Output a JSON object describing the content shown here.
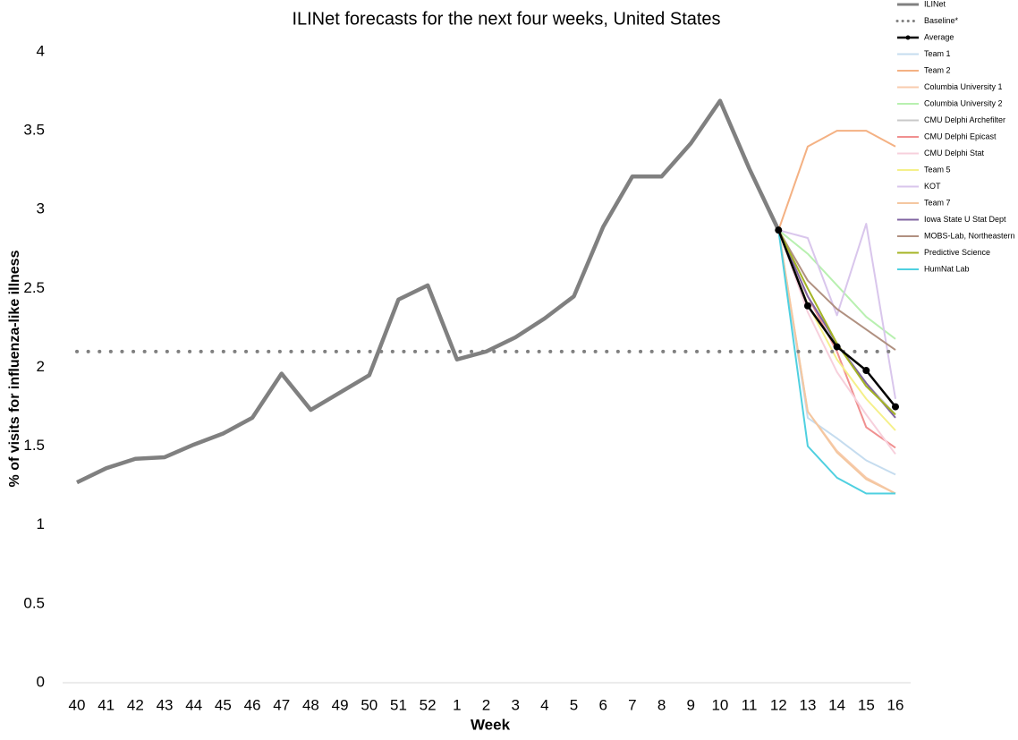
{
  "chart_data": {
    "type": "line",
    "title": "ILINet forecasts for the next four weeks, United States",
    "x_label": "Week",
    "y_label": "% of visits for influenza-like illness",
    "categories": [
      "40",
      "41",
      "42",
      "43",
      "44",
      "45",
      "46",
      "47",
      "48",
      "49",
      "50",
      "51",
      "52",
      "1",
      "2",
      "3",
      "4",
      "5",
      "6",
      "7",
      "8",
      "9",
      "10",
      "11",
      "12",
      "13",
      "14",
      "15",
      "16"
    ],
    "ylim": [
      0,
      4
    ],
    "yticks": [
      0,
      0.5,
      1,
      1.5,
      2,
      2.5,
      3,
      3.5,
      4
    ],
    "legend": "right",
    "series": [
      {
        "name": "ILINet",
        "color": "#808080",
        "width": 4.5,
        "values": [
          1.27,
          1.36,
          1.42,
          1.43,
          1.51,
          1.58,
          1.68,
          1.96,
          1.73,
          1.84,
          1.95,
          2.43,
          2.52,
          2.05,
          2.1,
          2.19,
          2.31,
          2.45,
          2.89,
          3.21,
          3.21,
          3.42,
          3.69,
          3.26,
          2.87,
          null,
          null,
          null,
          null
        ]
      },
      {
        "name": "Baseline*",
        "color": "#808080",
        "width": 4,
        "dash": "dotted",
        "values": [
          2.1,
          2.1,
          2.1,
          2.1,
          2.1,
          2.1,
          2.1,
          2.1,
          2.1,
          2.1,
          2.1,
          2.1,
          2.1,
          2.1,
          2.1,
          2.1,
          2.1,
          2.1,
          2.1,
          2.1,
          2.1,
          2.1,
          2.1,
          2.1,
          2.1,
          2.1,
          2.1,
          2.1,
          2.1
        ]
      },
      {
        "name": "Average",
        "color": "#000000",
        "width": 2.5,
        "markers": true,
        "values": [
          null,
          null,
          null,
          null,
          null,
          null,
          null,
          null,
          null,
          null,
          null,
          null,
          null,
          null,
          null,
          null,
          null,
          null,
          null,
          null,
          null,
          null,
          null,
          null,
          2.87,
          2.39,
          2.13,
          1.98,
          1.75
        ]
      },
      {
        "name": "Team 1",
        "color": "#c5dcef",
        "width": 2,
        "values": [
          null,
          null,
          null,
          null,
          null,
          null,
          null,
          null,
          null,
          null,
          null,
          null,
          null,
          null,
          null,
          null,
          null,
          null,
          null,
          null,
          null,
          null,
          null,
          null,
          2.87,
          1.68,
          1.55,
          1.41,
          1.32
        ]
      },
      {
        "name": "Team 2",
        "color": "#f4b183",
        "width": 2,
        "values": [
          null,
          null,
          null,
          null,
          null,
          null,
          null,
          null,
          null,
          null,
          null,
          null,
          null,
          null,
          null,
          null,
          null,
          null,
          null,
          null,
          null,
          null,
          null,
          null,
          2.87,
          3.4,
          3.5,
          3.5,
          3.4
        ]
      },
      {
        "name": "Columbia University 1",
        "color": "#f8cbad",
        "width": 2,
        "values": [
          null,
          null,
          null,
          null,
          null,
          null,
          null,
          null,
          null,
          null,
          null,
          null,
          null,
          null,
          null,
          null,
          null,
          null,
          null,
          null,
          null,
          null,
          null,
          null,
          2.87,
          1.72,
          1.47,
          1.3,
          1.2
        ]
      },
      {
        "name": "Columbia University 2",
        "color": "#b8f0b0",
        "width": 2,
        "values": [
          null,
          null,
          null,
          null,
          null,
          null,
          null,
          null,
          null,
          null,
          null,
          null,
          null,
          null,
          null,
          null,
          null,
          null,
          null,
          null,
          null,
          null,
          null,
          null,
          2.87,
          2.72,
          2.52,
          2.32,
          2.18
        ]
      },
      {
        "name": "CMU Delphi Archefilter",
        "color": "#c9c9c9",
        "width": 2,
        "values": [
          null,
          null,
          null,
          null,
          null,
          null,
          null,
          null,
          null,
          null,
          null,
          null,
          null,
          null,
          null,
          null,
          null,
          null,
          null,
          null,
          null,
          null,
          null,
          null,
          2.87,
          2.45,
          2.15,
          1.9,
          1.7
        ]
      },
      {
        "name": "CMU Delphi Epicast",
        "color": "#f09090",
        "width": 2,
        "values": [
          null,
          null,
          null,
          null,
          null,
          null,
          null,
          null,
          null,
          null,
          null,
          null,
          null,
          null,
          null,
          null,
          null,
          null,
          null,
          null,
          null,
          null,
          null,
          null,
          2.87,
          2.45,
          2.1,
          1.62,
          1.49
        ]
      },
      {
        "name": "CMU Delphi Stat",
        "color": "#f7d0dc",
        "width": 2,
        "values": [
          null,
          null,
          null,
          null,
          null,
          null,
          null,
          null,
          null,
          null,
          null,
          null,
          null,
          null,
          null,
          null,
          null,
          null,
          null,
          null,
          null,
          null,
          null,
          null,
          2.87,
          2.35,
          1.97,
          1.7,
          1.45
        ]
      },
      {
        "name": "Team 5",
        "color": "#f5f08a",
        "width": 2,
        "values": [
          null,
          null,
          null,
          null,
          null,
          null,
          null,
          null,
          null,
          null,
          null,
          null,
          null,
          null,
          null,
          null,
          null,
          null,
          null,
          null,
          null,
          null,
          null,
          null,
          2.87,
          2.4,
          2.05,
          1.8,
          1.6
        ]
      },
      {
        "name": "KOT",
        "color": "#d9c6ec",
        "width": 2,
        "values": [
          null,
          null,
          null,
          null,
          null,
          null,
          null,
          null,
          null,
          null,
          null,
          null,
          null,
          null,
          null,
          null,
          null,
          null,
          null,
          null,
          null,
          null,
          null,
          null,
          2.87,
          2.82,
          2.33,
          2.91,
          1.8
        ]
      },
      {
        "name": "Team 7",
        "color": "#f4c7a0",
        "width": 2,
        "values": [
          null,
          null,
          null,
          null,
          null,
          null,
          null,
          null,
          null,
          null,
          null,
          null,
          null,
          null,
          null,
          null,
          null,
          null,
          null,
          null,
          null,
          null,
          null,
          null,
          2.87,
          1.72,
          1.46,
          1.29,
          1.2
        ]
      },
      {
        "name": "Iowa State U Stat Dept",
        "color": "#8064a2",
        "width": 2,
        "values": [
          null,
          null,
          null,
          null,
          null,
          null,
          null,
          null,
          null,
          null,
          null,
          null,
          null,
          null,
          null,
          null,
          null,
          null,
          null,
          null,
          null,
          null,
          null,
          null,
          2.87,
          2.45,
          2.15,
          1.9,
          1.68
        ]
      },
      {
        "name": "MOBS-Lab, Northeastern",
        "color": "#b09080",
        "width": 2,
        "values": [
          null,
          null,
          null,
          null,
          null,
          null,
          null,
          null,
          null,
          null,
          null,
          null,
          null,
          null,
          null,
          null,
          null,
          null,
          null,
          null,
          null,
          null,
          null,
          null,
          2.87,
          2.55,
          2.37,
          2.24,
          2.11
        ]
      },
      {
        "name": "Predictive Science",
        "color": "#a4b424",
        "width": 2,
        "values": [
          null,
          null,
          null,
          null,
          null,
          null,
          null,
          null,
          null,
          null,
          null,
          null,
          null,
          null,
          null,
          null,
          null,
          null,
          null,
          null,
          null,
          null,
          null,
          null,
          2.87,
          2.5,
          2.15,
          1.88,
          1.7
        ]
      },
      {
        "name": "HumNat Lab",
        "color": "#4fd0e0",
        "width": 2,
        "values": [
          null,
          null,
          null,
          null,
          null,
          null,
          null,
          null,
          null,
          null,
          null,
          null,
          null,
          null,
          null,
          null,
          null,
          null,
          null,
          null,
          null,
          null,
          null,
          null,
          2.87,
          1.5,
          1.3,
          1.2,
          1.2
        ]
      }
    ]
  }
}
